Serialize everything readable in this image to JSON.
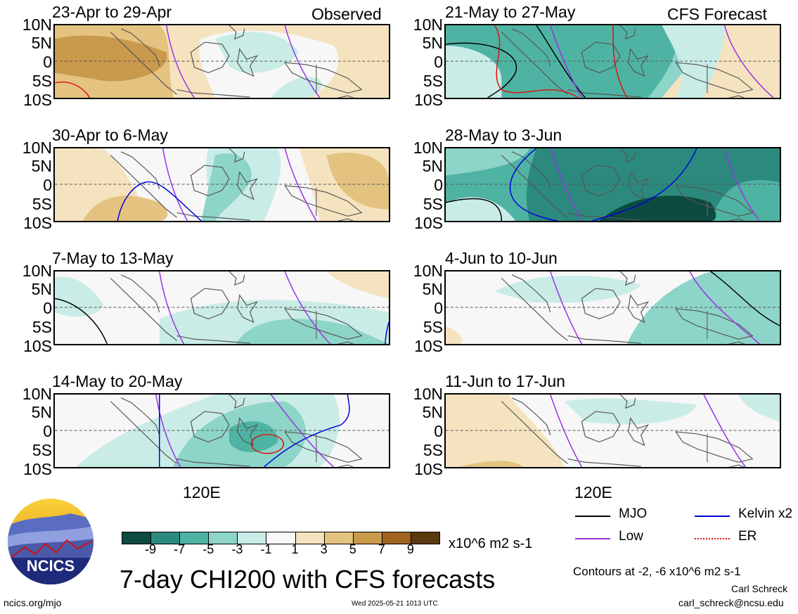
{
  "labels": {
    "observed": "Observed",
    "forecast": "CFS Forecast",
    "lon_label": "120E",
    "lat_ticks": [
      "10N",
      "5N",
      "0",
      "5S",
      "10S"
    ],
    "main_title": "7-day CHI200 with CFS forecasts",
    "units": "x10^6 m2 s-1",
    "contour_note": "Contours at -2, -6 x10^6 m2 s-1",
    "author": "Carl Schreck",
    "email": "carl_schreck@ncsu.edu",
    "website": "ncics.org/mjo",
    "timestamp": "Wed 2025-05-21 1013 UTC",
    "logo_text": "NCICS"
  },
  "chart_data": {
    "type": "heatmap",
    "title": "7-day CHI200 with CFS forecasts",
    "units": "x10^6 m2 s-1",
    "panels": [
      {
        "label": "23-Apr to 29-Apr",
        "source": "Observed"
      },
      {
        "label": "30-Apr to 6-May",
        "source": "Observed"
      },
      {
        "label": "7-May to 13-May",
        "source": "Observed"
      },
      {
        "label": "14-May to 20-May",
        "source": "Observed"
      },
      {
        "label": "21-May to 27-May",
        "source": "CFS Forecast"
      },
      {
        "label": "28-May to 3-Jun",
        "source": "CFS Forecast"
      },
      {
        "label": "4-Jun to 10-Jun",
        "source": "CFS Forecast"
      },
      {
        "label": "11-Jun to 17-Jun",
        "source": "CFS Forecast"
      }
    ],
    "colorbar": {
      "ticks": [
        "-9",
        "-7",
        "-5",
        "-3",
        "-1",
        "1",
        "3",
        "5",
        "7",
        "9"
      ],
      "colors": [
        "#0d4a40",
        "#2b8a7d",
        "#4fb3a3",
        "#8dd5c8",
        "#c9ece6",
        "#f7f7f7",
        "#f5e3bf",
        "#e3c37f",
        "#c9994c",
        "#a0621f",
        "#5a3a0e"
      ]
    },
    "legend": [
      {
        "name": "MJO",
        "color": "#000000"
      },
      {
        "name": "Kelvin x2",
        "color": "#0000dd"
      },
      {
        "name": "Low",
        "color": "#9b30e8"
      },
      {
        "name": "ER",
        "color": "#dd1111"
      }
    ],
    "ylabels": [
      "10N",
      "5N",
      "0",
      "5S",
      "10S"
    ],
    "xlabel": "120E"
  }
}
